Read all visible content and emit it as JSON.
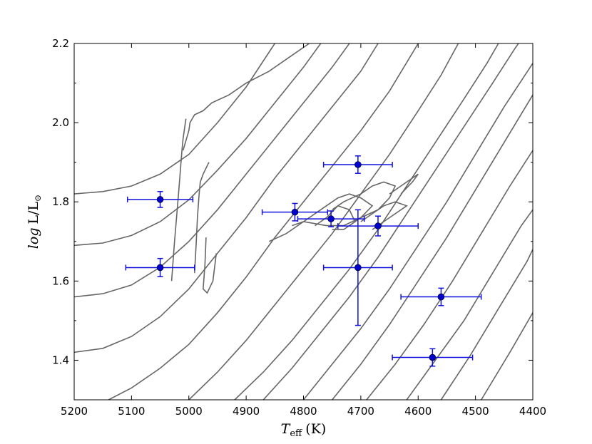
{
  "chart_data": {
    "type": "scatter",
    "xlabel_main": "T",
    "xlabel_sub": "eff",
    "xlabel_unit": "(K)",
    "ylabel_main": "log",
    "ylabel_rest": "L/L",
    "ylabel_sun": "⊙",
    "xlim": [
      5200,
      4400
    ],
    "ylim": [
      1.3,
      2.2
    ],
    "x_reversed": true,
    "xticks": [
      "5200",
      "5100",
      "5000",
      "4900",
      "4800",
      "4700",
      "4600",
      "4500",
      "4400"
    ],
    "yticks": [
      "1.4",
      "1.6",
      "1.8",
      "2.0",
      "2.2"
    ],
    "grid": false,
    "colors": {
      "points": "#0000cc",
      "errorbars": "#1111dd",
      "tracks": "#666666"
    },
    "series": [
      {
        "points": [
          {
            "x": 5050,
            "y": 1.806,
            "xerr": 57,
            "yerr": 0.02
          },
          {
            "x": 5050,
            "y": 1.634,
            "xerr": 60,
            "yerr": 0.023
          },
          {
            "x": 4815,
            "y": 1.774,
            "xerr": 57,
            "yerr": 0.022
          },
          {
            "x": 4752,
            "y": 1.757,
            "xerr": 58,
            "yerr": 0.02
          },
          {
            "x": 4705,
            "y": 1.894,
            "xerr": 60,
            "yerr": 0.022
          },
          {
            "x": 4705,
            "y": 1.634,
            "xerr": 60,
            "yerr": 0.146
          },
          {
            "x": 4670,
            "y": 1.739,
            "xerr": 70,
            "yerr": 0.025
          },
          {
            "x": 4560,
            "y": 1.56,
            "xerr": 70,
            "yerr": 0.022
          },
          {
            "x": 4575,
            "y": 1.407,
            "xerr": 70,
            "yerr": 0.022
          }
        ]
      }
    ],
    "tracks": [
      [
        [
          5200,
          1.82
        ],
        [
          5150,
          1.826
        ],
        [
          5100,
          1.84
        ],
        [
          5050,
          1.87
        ],
        [
          5000,
          1.92
        ],
        [
          4950,
          2.0
        ],
        [
          4900,
          2.09
        ],
        [
          4850,
          2.2
        ]
      ],
      [
        [
          5200,
          1.69
        ],
        [
          5150,
          1.696
        ],
        [
          5100,
          1.715
        ],
        [
          5050,
          1.75
        ],
        [
          5000,
          1.805
        ],
        [
          4950,
          1.88
        ],
        [
          4900,
          1.96
        ],
        [
          4850,
          2.05
        ],
        [
          4800,
          2.14
        ],
        [
          4770,
          2.2
        ]
      ],
      [
        [
          5200,
          1.56
        ],
        [
          5150,
          1.568
        ],
        [
          5100,
          1.59
        ],
        [
          5050,
          1.635
        ],
        [
          5000,
          1.7
        ],
        [
          4950,
          1.78
        ],
        [
          4900,
          1.87
        ],
        [
          4850,
          1.96
        ],
        [
          4800,
          2.05
        ],
        [
          4750,
          2.14
        ],
        [
          4720,
          2.2
        ]
      ],
      [
        [
          5200,
          1.42
        ],
        [
          5150,
          1.43
        ],
        [
          5100,
          1.46
        ],
        [
          5050,
          1.51
        ],
        [
          5000,
          1.58
        ],
        [
          4950,
          1.67
        ],
        [
          4900,
          1.76
        ],
        [
          4850,
          1.86
        ],
        [
          4800,
          1.95
        ],
        [
          4750,
          2.04
        ],
        [
          4700,
          2.13
        ],
        [
          4670,
          2.2
        ]
      ],
      [
        [
          5140,
          1.3
        ],
        [
          5100,
          1.33
        ],
        [
          5050,
          1.38
        ],
        [
          5000,
          1.44
        ],
        [
          4950,
          1.52
        ],
        [
          4900,
          1.61
        ],
        [
          4850,
          1.71
        ],
        [
          4800,
          1.8
        ],
        [
          4750,
          1.89
        ],
        [
          4700,
          1.98
        ],
        [
          4650,
          2.08
        ],
        [
          4600,
          2.2
        ]
      ],
      [
        [
          5000,
          1.3
        ],
        [
          4950,
          1.37
        ],
        [
          4900,
          1.45
        ],
        [
          4850,
          1.54
        ],
        [
          4800,
          1.63
        ],
        [
          4750,
          1.72
        ],
        [
          4700,
          1.82
        ],
        [
          4650,
          1.92
        ],
        [
          4600,
          2.03
        ],
        [
          4560,
          2.12
        ],
        [
          4530,
          2.2
        ]
      ],
      [
        [
          4920,
          1.3
        ],
        [
          4870,
          1.37
        ],
        [
          4820,
          1.45
        ],
        [
          4770,
          1.54
        ],
        [
          4720,
          1.63
        ],
        [
          4670,
          1.73
        ],
        [
          4620,
          1.84
        ],
        [
          4570,
          1.95
        ],
        [
          4520,
          2.06
        ],
        [
          4480,
          2.15
        ],
        [
          4460,
          2.2
        ]
      ],
      [
        [
          4870,
          1.3
        ],
        [
          4820,
          1.38
        ],
        [
          4770,
          1.47
        ],
        [
          4720,
          1.56
        ],
        [
          4670,
          1.66
        ],
        [
          4620,
          1.77
        ],
        [
          4570,
          1.88
        ],
        [
          4520,
          1.99
        ],
        [
          4470,
          2.1
        ],
        [
          4430,
          2.19
        ],
        [
          4425,
          2.2
        ]
      ],
      [
        [
          4800,
          1.3
        ],
        [
          4750,
          1.39
        ],
        [
          4700,
          1.48
        ],
        [
          4650,
          1.58
        ],
        [
          4600,
          1.69
        ],
        [
          4550,
          1.8
        ],
        [
          4500,
          1.92
        ],
        [
          4450,
          2.04
        ],
        [
          4400,
          2.15
        ]
      ],
      [
        [
          4750,
          1.3
        ],
        [
          4700,
          1.39
        ],
        [
          4650,
          1.49
        ],
        [
          4600,
          1.6
        ],
        [
          4550,
          1.71
        ],
        [
          4500,
          1.83
        ],
        [
          4450,
          1.95
        ],
        [
          4400,
          2.07
        ]
      ],
      [
        [
          4690,
          1.3
        ],
        [
          4640,
          1.39
        ],
        [
          4590,
          1.49
        ],
        [
          4540,
          1.6
        ],
        [
          4490,
          1.72
        ],
        [
          4440,
          1.84
        ],
        [
          4400,
          1.93
        ]
      ],
      [
        [
          4620,
          1.3
        ],
        [
          4570,
          1.4
        ],
        [
          4520,
          1.5
        ],
        [
          4470,
          1.62
        ],
        [
          4420,
          1.74
        ],
        [
          4400,
          1.78
        ]
      ],
      [
        [
          4560,
          1.3
        ],
        [
          4510,
          1.41
        ],
        [
          4460,
          1.53
        ],
        [
          4410,
          1.65
        ],
        [
          4400,
          1.68
        ]
      ],
      [
        [
          4490,
          1.3
        ],
        [
          4440,
          1.42
        ],
        [
          4400,
          1.52
        ]
      ],
      [
        [
          5010,
          1.93
        ],
        [
          5000,
          1.98
        ],
        [
          4998,
          2.0
        ],
        [
          4990,
          2.02
        ],
        [
          4975,
          2.03
        ],
        [
          4960,
          2.05
        ],
        [
          4930,
          2.07
        ],
        [
          4900,
          2.1
        ],
        [
          4860,
          2.13
        ],
        [
          4830,
          2.16
        ],
        [
          4790,
          2.2
        ]
      ],
      [
        [
          5030,
          1.6
        ],
        [
          5025,
          1.7
        ],
        [
          5018,
          1.82
        ],
        [
          5012,
          1.93
        ],
        [
          5010,
          1.96
        ],
        [
          5005,
          2.01
        ]
      ],
      [
        [
          4990,
          1.62
        ],
        [
          4987,
          1.7
        ],
        [
          4985,
          1.76
        ],
        [
          4982,
          1.82
        ],
        [
          4980,
          1.85
        ],
        [
          4975,
          1.87
        ],
        [
          4965,
          1.9
        ]
      ],
      [
        [
          4970,
          1.71
        ],
        [
          4972,
          1.64
        ],
        [
          4975,
          1.58
        ],
        [
          4968,
          1.57
        ],
        [
          4958,
          1.6
        ],
        [
          4952,
          1.67
        ]
      ],
      [
        [
          4860,
          1.7
        ],
        [
          4830,
          1.72
        ],
        [
          4800,
          1.75
        ],
        [
          4770,
          1.78
        ],
        [
          4740,
          1.81
        ],
        [
          4720,
          1.82
        ],
        [
          4700,
          1.81
        ],
        [
          4680,
          1.79
        ],
        [
          4700,
          1.76
        ],
        [
          4730,
          1.74
        ],
        [
          4760,
          1.74
        ],
        [
          4800,
          1.75
        ],
        [
          4820,
          1.74
        ]
      ],
      [
        [
          4750,
          1.78
        ],
        [
          4730,
          1.8
        ],
        [
          4700,
          1.82
        ],
        [
          4680,
          1.84
        ],
        [
          4660,
          1.85
        ],
        [
          4640,
          1.84
        ],
        [
          4650,
          1.81
        ],
        [
          4670,
          1.78
        ],
        [
          4700,
          1.76
        ],
        [
          4720,
          1.74
        ]
      ],
      [
        [
          4780,
          1.74
        ],
        [
          4760,
          1.76
        ],
        [
          4740,
          1.79
        ],
        [
          4720,
          1.78
        ],
        [
          4710,
          1.75
        ],
        [
          4730,
          1.73
        ],
        [
          4750,
          1.73
        ]
      ],
      [
        [
          4700,
          1.75
        ],
        [
          4680,
          1.77
        ],
        [
          4660,
          1.79
        ],
        [
          4640,
          1.8
        ],
        [
          4620,
          1.79
        ],
        [
          4640,
          1.77
        ],
        [
          4660,
          1.75
        ],
        [
          4680,
          1.73
        ]
      ],
      [
        [
          4650,
          1.82
        ],
        [
          4630,
          1.84
        ],
        [
          4610,
          1.86
        ],
        [
          4600,
          1.87
        ],
        [
          4610,
          1.85
        ],
        [
          4630,
          1.82
        ]
      ]
    ]
  }
}
